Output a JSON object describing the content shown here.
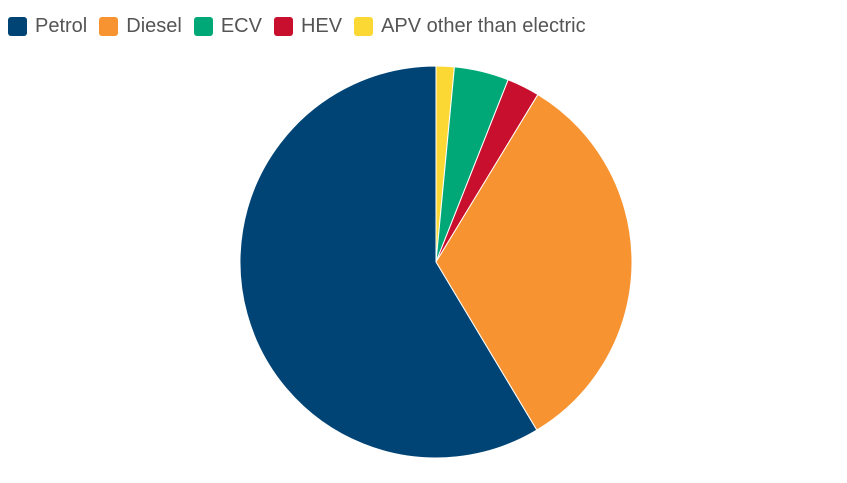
{
  "chart_data": {
    "type": "pie",
    "title": "",
    "legend_position": "top-left",
    "series": [
      {
        "categories": [
          "Petrol",
          "Diesel",
          "ECV",
          "HEV",
          "APV other than electric"
        ],
        "values": [
          58.6,
          32.7,
          4.5,
          2.7,
          1.5
        ],
        "colors": [
          "#004475",
          "#f79431",
          "#00a878",
          "#c8102e",
          "#fcd835"
        ]
      }
    ]
  }
}
